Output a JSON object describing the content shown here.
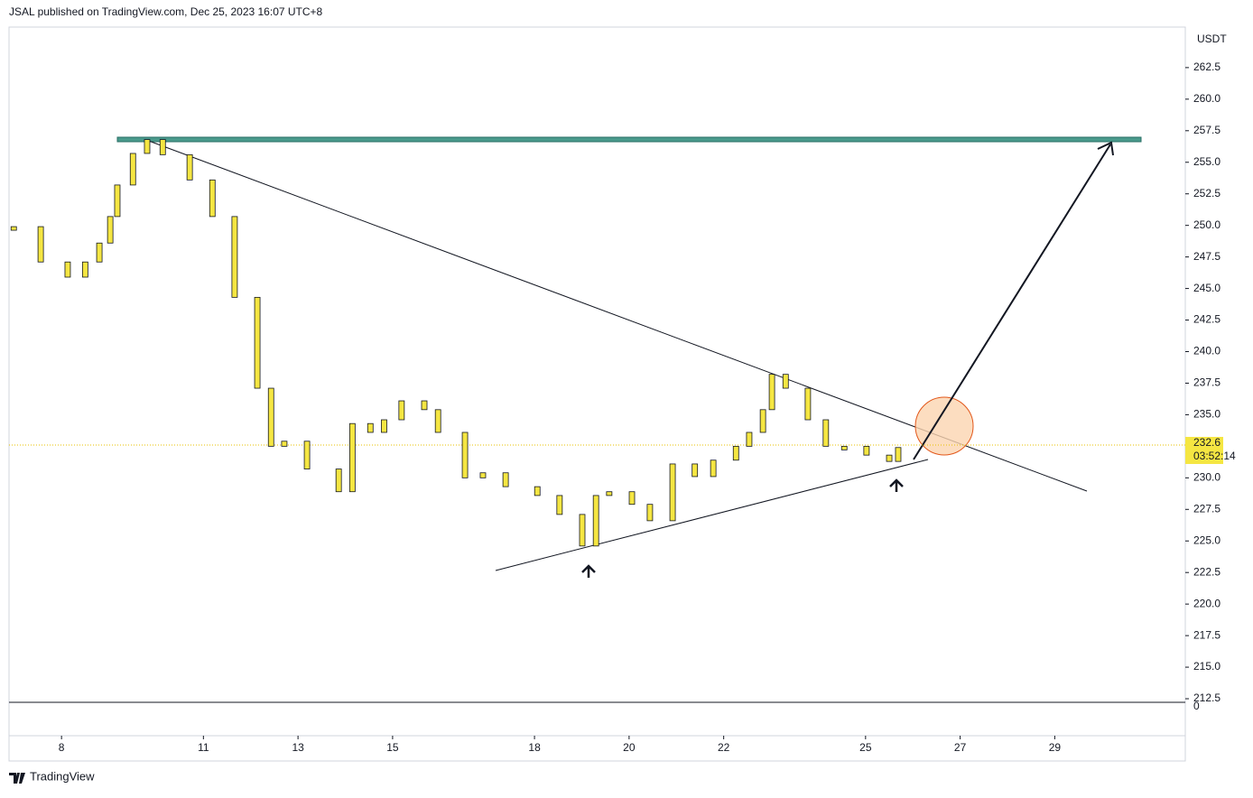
{
  "header": "JSAL published on TradingView.com, Dec 25, 2023 16:07 UTC+8",
  "footer": "TradingView",
  "chart_data": {
    "type": "bar",
    "currency": "USDT",
    "last_price": 232.6,
    "countdown": "03:52:14",
    "volume_zero_label": "0",
    "color": "#f5e642",
    "xlim": [
      6.89,
      31.76
    ],
    "xticks": [
      8,
      11,
      13,
      15,
      18,
      20,
      22,
      25,
      27,
      29
    ],
    "ylim": [
      209.57,
      265.71
    ],
    "yticks": [
      262.5,
      {
        "value": 260,
        "label": "260.0"
      },
      257.5,
      {
        "value": 255,
        "label": "255.0"
      },
      252.5,
      {
        "value": 250,
        "label": "250.0"
      },
      247.5,
      {
        "value": 245,
        "label": "245.0"
      },
      242.5,
      {
        "value": 240,
        "label": "240.0"
      },
      237.5,
      {
        "value": 235,
        "label": "235.0"
      },
      {
        "value": 230,
        "label": "230.0"
      },
      227.5,
      {
        "value": 225,
        "label": "225.0"
      },
      222.5,
      {
        "value": 220,
        "label": "220.0"
      },
      217.5,
      {
        "value": 215,
        "label": "215.0"
      },
      212.5
    ],
    "x": [
      6.99,
      7.56,
      8.13,
      8.5,
      8.8,
      9.03,
      9.18,
      9.51,
      9.81,
      10.14,
      10.71,
      11.19,
      11.66,
      12.14,
      12.43,
      12.71,
      13.19,
      13.86,
      14.15,
      14.53,
      14.82,
      15.19,
      15.67,
      15.96,
      16.53,
      16.91,
      17.39,
      18.06,
      18.53,
      19.01,
      19.3,
      19.58,
      20.06,
      20.44,
      20.92,
      21.39,
      21.78,
      22.26,
      22.54,
      22.83,
      23.02,
      23.31,
      23.78,
      24.16,
      24.55,
      25.02,
      25.5,
      25.69
    ],
    "values": [
      249.9,
      247.1,
      245.9,
      247.1,
      248.6,
      250.7,
      253.2,
      255.7,
      256.8,
      255.6,
      253.6,
      250.7,
      244.3,
      237.1,
      232.5,
      232.9,
      230.7,
      228.9,
      234.3,
      233.6,
      234.6,
      236.1,
      235.4,
      233.6,
      230.0,
      230.4,
      229.3,
      228.6,
      227.1,
      224.6,
      228.6,
      228.9,
      227.9,
      226.6,
      231.1,
      230.1,
      231.4,
      232.5,
      233.6,
      235.4,
      238.2,
      237.1,
      234.6,
      232.5,
      232.5,
      231.8,
      231.3,
      232.4
    ]
  }
}
